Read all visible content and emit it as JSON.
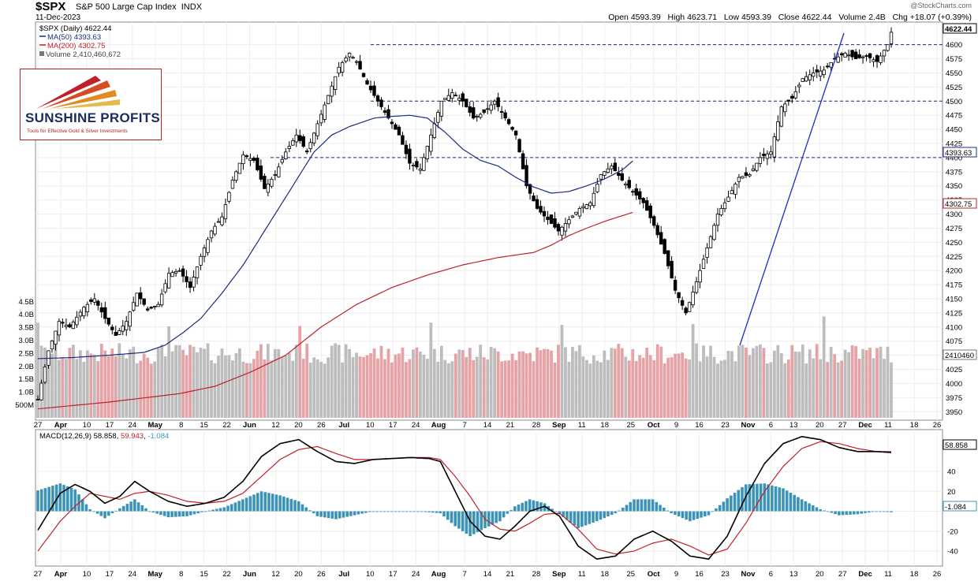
{
  "header": {
    "symbol": "$SPX",
    "name": "S&P 500 Large Cap Index",
    "exchange": "INDX",
    "date": "11-Dec-2023",
    "copyright": "@StockCharts.com",
    "open_label": "Open",
    "open": "4593.39",
    "high_label": "High",
    "high": "4623.71",
    "low_label": "Low",
    "low": "4593.39",
    "close_label": "Close",
    "close": "4622.44",
    "volume_label": "Volume",
    "volume": "2.4B",
    "chg_label": "Chg",
    "chg": "+18.07 (+0.39%)"
  },
  "legend": {
    "price": "$SPX (Daily) 4622.44",
    "ma50": "MA(50) 4393.63",
    "ma200": "MA(200) 4302.75",
    "volume": "Volume 2,410,460,672"
  },
  "logo": {
    "name": "SUNSHINE PROFITS",
    "tagline": "Tools for Effective Gold & Silver Investments"
  },
  "macd_legend": {
    "label": "MACD(12,26,9)",
    "macd": "58.858",
    "signal": "59.943",
    "hist": "-1.084"
  },
  "colors": {
    "up": "#ffffff",
    "down": "#000000",
    "ma50": "#1c2a80",
    "ma200": "#c0202b",
    "vol_up": "#bdbdbd",
    "vol_down": "#e6a3a6",
    "hist": "#3b94b8",
    "trend": "#1c2acc"
  },
  "chart_data": [
    {
      "type": "candlestick",
      "title": "$SPX S&P 500 Large Cap Index INDX",
      "ylim": [
        3935,
        4640
      ],
      "y_ticks": [
        3950,
        3975,
        4000,
        4025,
        4050,
        4075,
        4100,
        4125,
        4150,
        4175,
        4200,
        4225,
        4250,
        4275,
        4300,
        4325,
        4350,
        4375,
        4400,
        4425,
        4450,
        4475,
        4500,
        4525,
        4550,
        4575,
        4600
      ],
      "x_tick_labels": [
        "27",
        "Apr",
        "10",
        "17",
        "24",
        "May",
        "8",
        "15",
        "22",
        "Jun",
        "12",
        "20",
        "26",
        "Jul",
        "10",
        "17",
        "24",
        "Aug",
        "7",
        "14",
        "21",
        "28",
        "Sep",
        "11",
        "18",
        "25",
        "Oct",
        "9",
        "16",
        "23",
        "Nov",
        "6",
        "13",
        "20",
        "27",
        "Dec",
        "11",
        "18",
        "26"
      ],
      "month_labels": [
        "Apr",
        "May",
        "Jun",
        "Jul",
        "Aug",
        "Sep",
        "Oct",
        "Nov",
        "Dec"
      ],
      "horizontal_levels": [
        4600,
        4500,
        4400
      ],
      "last_labels": {
        "close": "4622.44",
        "ma50": "4393.63",
        "ma200": "4302.75",
        "volume": "2410460"
      },
      "volume_ticks": [
        "500M",
        "1.0B",
        "1.5B",
        "2.0B",
        "2.5B",
        "3.0B",
        "3.5B",
        "4.0B",
        "4.5B"
      ],
      "ma50_anchors": [
        [
          0,
          4044
        ],
        [
          10,
          4046
        ],
        [
          20,
          4050
        ],
        [
          30,
          4055
        ],
        [
          36,
          4068
        ],
        [
          41,
          4090
        ],
        [
          46,
          4115
        ],
        [
          52,
          4160
        ],
        [
          58,
          4210
        ],
        [
          63,
          4260
        ],
        [
          68,
          4310
        ],
        [
          73,
          4360
        ],
        [
          78,
          4410
        ],
        [
          83,
          4440
        ],
        [
          88,
          4455
        ],
        [
          95,
          4470
        ],
        [
          100,
          4473
        ],
        [
          105,
          4475
        ],
        [
          110,
          4470
        ],
        [
          115,
          4445
        ],
        [
          120,
          4415
        ],
        [
          125,
          4395
        ],
        [
          130,
          4385
        ],
        [
          135,
          4365
        ],
        [
          140,
          4348
        ],
        [
          145,
          4337
        ],
        [
          150,
          4340
        ],
        [
          155,
          4350
        ],
        [
          160,
          4362
        ],
        [
          165,
          4378
        ],
        [
          168,
          4394
        ]
      ],
      "ma200_anchors": [
        [
          0,
          3955
        ],
        [
          20,
          3967
        ],
        [
          40,
          3982
        ],
        [
          50,
          3995
        ],
        [
          60,
          4020
        ],
        [
          70,
          4050
        ],
        [
          80,
          4100
        ],
        [
          90,
          4140
        ],
        [
          100,
          4170
        ],
        [
          110,
          4192
        ],
        [
          120,
          4210
        ],
        [
          130,
          4223
        ],
        [
          140,
          4232
        ],
        [
          145,
          4245
        ],
        [
          150,
          4262
        ],
        [
          155,
          4275
        ],
        [
          160,
          4287
        ],
        [
          168,
          4303
        ]
      ],
      "price_anchors": [
        [
          0,
          3972
        ],
        [
          3,
          4058
        ],
        [
          6,
          4110
        ],
        [
          9,
          4100
        ],
        [
          13,
          4135
        ],
        [
          16,
          4150
        ],
        [
          19,
          4115
        ],
        [
          22,
          4085
        ],
        [
          25,
          4110
        ],
        [
          28,
          4160
        ],
        [
          31,
          4130
        ],
        [
          34,
          4140
        ],
        [
          37,
          4195
        ],
        [
          40,
          4200
        ],
        [
          43,
          4170
        ],
        [
          46,
          4225
        ],
        [
          49,
          4270
        ],
        [
          52,
          4295
        ],
        [
          55,
          4360
        ],
        [
          58,
          4405
        ],
        [
          61,
          4395
        ],
        [
          64,
          4345
        ],
        [
          67,
          4370
        ],
        [
          70,
          4410
        ],
        [
          73,
          4440
        ],
        [
          76,
          4410
        ],
        [
          79,
          4460
        ],
        [
          82,
          4510
        ],
        [
          85,
          4560
        ],
        [
          88,
          4585
        ],
        [
          90,
          4570
        ],
        [
          93,
          4530
        ],
        [
          96,
          4500
        ],
        [
          99,
          4470
        ],
        [
          102,
          4440
        ],
        [
          105,
          4390
        ],
        [
          108,
          4380
        ],
        [
          111,
          4440
        ],
        [
          114,
          4500
        ],
        [
          117,
          4515
        ],
        [
          120,
          4500
        ],
        [
          123,
          4470
        ],
        [
          126,
          4480
        ],
        [
          129,
          4500
        ],
        [
          132,
          4470
        ],
        [
          135,
          4440
        ],
        [
          138,
          4350
        ],
        [
          141,
          4310
        ],
        [
          144,
          4290
        ],
        [
          147,
          4270
        ],
        [
          150,
          4290
        ],
        [
          153,
          4310
        ],
        [
          156,
          4320
        ],
        [
          159,
          4370
        ],
        [
          162,
          4385
        ],
        [
          165,
          4360
        ],
        [
          168,
          4340
        ],
        [
          171,
          4320
        ],
        [
          174,
          4280
        ],
        [
          177,
          4230
        ],
        [
          180,
          4165
        ],
        [
          183,
          4125
        ],
        [
          186,
          4180
        ],
        [
          189,
          4240
        ],
        [
          192,
          4300
        ],
        [
          195,
          4330
        ],
        [
          198,
          4365
        ],
        [
          201,
          4370
        ],
        [
          204,
          4400
        ],
        [
          207,
          4410
        ],
        [
          210,
          4490
        ],
        [
          213,
          4505
        ],
        [
          216,
          4540
        ],
        [
          219,
          4550
        ],
        [
          222,
          4555
        ],
        [
          225,
          4575
        ],
        [
          228,
          4585
        ],
        [
          231,
          4575
        ],
        [
          234,
          4580
        ],
        [
          237,
          4570
        ],
        [
          240,
          4600
        ],
        [
          241,
          4622
        ]
      ]
    },
    {
      "type": "line",
      "title": "MACD(12,26,9)",
      "ylim": [
        -55,
        82
      ],
      "y_ticks": [
        -40,
        -20,
        0,
        20,
        40
      ],
      "series": [
        {
          "name": "MACD",
          "values_anchors": [
            [
              0,
              -19
            ],
            [
              6,
              18
            ],
            [
              10,
              27
            ],
            [
              14,
              20
            ],
            [
              18,
              8
            ],
            [
              22,
              15
            ],
            [
              26,
              30
            ],
            [
              30,
              20
            ],
            [
              35,
              10
            ],
            [
              40,
              5
            ],
            [
              45,
              8
            ],
            [
              50,
              14
            ],
            [
              55,
              30
            ],
            [
              60,
              55
            ],
            [
              65,
              68
            ],
            [
              70,
              72
            ],
            [
              75,
              60
            ],
            [
              80,
              50
            ],
            [
              85,
              48
            ],
            [
              90,
              52
            ],
            [
              95,
              53
            ],
            [
              100,
              54
            ],
            [
              105,
              53
            ],
            [
              108,
              50
            ],
            [
              112,
              20
            ],
            [
              116,
              -10
            ],
            [
              120,
              -25
            ],
            [
              124,
              -28
            ],
            [
              128,
              -15
            ],
            [
              132,
              0
            ],
            [
              136,
              5
            ],
            [
              140,
              -5
            ],
            [
              145,
              -35
            ],
            [
              150,
              -48
            ],
            [
              155,
              -45
            ],
            [
              160,
              -28
            ],
            [
              165,
              -20
            ],
            [
              170,
              -30
            ],
            [
              175,
              -45
            ],
            [
              180,
              -48
            ],
            [
              185,
              -25
            ],
            [
              190,
              15
            ],
            [
              195,
              48
            ],
            [
              200,
              68
            ],
            [
              205,
              75
            ],
            [
              210,
              72
            ],
            [
              215,
              64
            ],
            [
              220,
              60
            ],
            [
              225,
              60
            ],
            [
              229,
              59
            ]
          ]
        },
        {
          "name": "Signal",
          "values_anchors": [
            [
              0,
              -40
            ],
            [
              6,
              -10
            ],
            [
              10,
              5
            ],
            [
              14,
              18
            ],
            [
              18,
              15
            ],
            [
              22,
              12
            ],
            [
              26,
              18
            ],
            [
              30,
              20
            ],
            [
              35,
              16
            ],
            [
              40,
              10
            ],
            [
              45,
              8
            ],
            [
              50,
              10
            ],
            [
              55,
              18
            ],
            [
              60,
              35
            ],
            [
              65,
              52
            ],
            [
              70,
              62
            ],
            [
              75,
              65
            ],
            [
              80,
              58
            ],
            [
              85,
              52
            ],
            [
              90,
              52
            ],
            [
              95,
              53
            ],
            [
              100,
              54
            ],
            [
              105,
              54
            ],
            [
              108,
              52
            ],
            [
              112,
              35
            ],
            [
              116,
              15
            ],
            [
              120,
              -8
            ],
            [
              124,
              -18
            ],
            [
              128,
              -20
            ],
            [
              132,
              -12
            ],
            [
              136,
              -3
            ],
            [
              140,
              -2
            ],
            [
              145,
              -18
            ],
            [
              150,
              -38
            ],
            [
              155,
              -43
            ],
            [
              160,
              -40
            ],
            [
              165,
              -32
            ],
            [
              170,
              -28
            ],
            [
              175,
              -35
            ],
            [
              180,
              -44
            ],
            [
              185,
              -38
            ],
            [
              190,
              -12
            ],
            [
              195,
              20
            ],
            [
              200,
              45
            ],
            [
              205,
              63
            ],
            [
              210,
              70
            ],
            [
              215,
              68
            ],
            [
              220,
              63
            ],
            [
              225,
              60
            ],
            [
              229,
              60
            ]
          ]
        }
      ]
    }
  ]
}
